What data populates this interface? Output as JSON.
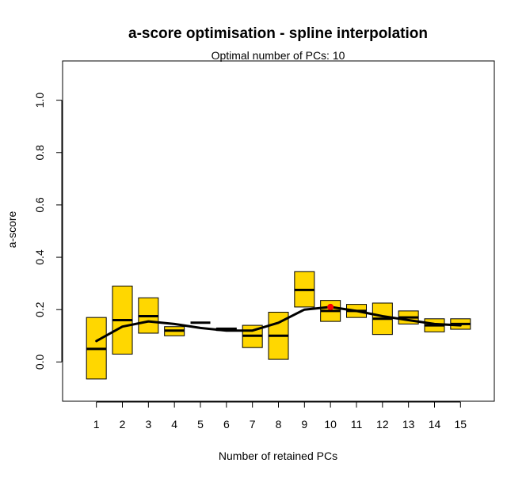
{
  "chart_data": {
    "type": "box",
    "title": "a-score optimisation - spline interpolation",
    "subtitle": "Optimal number of PCs: 10",
    "xlabel": "Number of retained PCs",
    "ylabel": "a-score",
    "ylim": [
      -0.15,
      1.15
    ],
    "xlim": [
      -0.3,
      16.3
    ],
    "y_ticks": [
      0.0,
      0.2,
      0.4,
      0.6,
      0.8,
      1.0
    ],
    "y_tick_labels": [
      "0.0",
      "0.2",
      "0.4",
      "0.6",
      "0.8",
      "1.0"
    ],
    "x_ticks": [
      1,
      2,
      3,
      4,
      5,
      6,
      7,
      8,
      9,
      10,
      11,
      12,
      13,
      14,
      15
    ],
    "x_tick_labels": [
      "1",
      "2",
      "3",
      "4",
      "5",
      "6",
      "7",
      "8",
      "9",
      "10",
      "11",
      "12",
      "13",
      "14",
      "15"
    ],
    "box_color": "#FFD700",
    "boxes": [
      {
        "pc": 1,
        "low": -0.065,
        "median": 0.05,
        "high": 0.17
      },
      {
        "pc": 2,
        "low": 0.03,
        "median": 0.16,
        "high": 0.29
      },
      {
        "pc": 3,
        "low": 0.11,
        "median": 0.175,
        "high": 0.245
      },
      {
        "pc": 4,
        "low": 0.1,
        "median": 0.12,
        "high": 0.135
      },
      {
        "pc": 5,
        "low": 0.15,
        "median": 0.15,
        "high": 0.15
      },
      {
        "pc": 6,
        "low": 0.12,
        "median": 0.125,
        "high": 0.13
      },
      {
        "pc": 7,
        "low": 0.055,
        "median": 0.1,
        "high": 0.14
      },
      {
        "pc": 8,
        "low": 0.01,
        "median": 0.1,
        "high": 0.19
      },
      {
        "pc": 9,
        "low": 0.21,
        "median": 0.275,
        "high": 0.345
      },
      {
        "pc": 10,
        "low": 0.155,
        "median": 0.195,
        "high": 0.235
      },
      {
        "pc": 11,
        "low": 0.17,
        "median": 0.195,
        "high": 0.22
      },
      {
        "pc": 12,
        "low": 0.105,
        "median": 0.165,
        "high": 0.225
      },
      {
        "pc": 13,
        "low": 0.145,
        "median": 0.17,
        "high": 0.195
      },
      {
        "pc": 14,
        "low": 0.115,
        "median": 0.14,
        "high": 0.165
      },
      {
        "pc": 15,
        "low": 0.125,
        "median": 0.145,
        "high": 0.165
      }
    ],
    "spline": {
      "x": [
        1,
        2,
        3,
        4,
        5,
        6,
        7,
        8,
        9,
        10,
        11,
        12,
        13,
        14,
        15
      ],
      "y": [
        0.08,
        0.135,
        0.155,
        0.145,
        0.13,
        0.12,
        0.12,
        0.15,
        0.2,
        0.21,
        0.195,
        0.175,
        0.16,
        0.145,
        0.14
      ]
    },
    "optimum": {
      "x": 10,
      "y": 0.21,
      "color": "#FF0000"
    }
  }
}
